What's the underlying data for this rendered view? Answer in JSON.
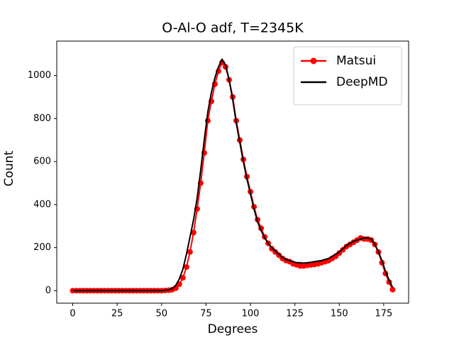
{
  "chart_data": {
    "type": "line",
    "title": "O-Al-O adf, T=2345K",
    "x_label": "Degrees",
    "y_label": "Count",
    "x": [
      0,
      2,
      4,
      6,
      8,
      10,
      12,
      14,
      16,
      18,
      20,
      22,
      24,
      26,
      28,
      30,
      32,
      34,
      36,
      38,
      40,
      42,
      44,
      46,
      48,
      50,
      52,
      54,
      56,
      58,
      60,
      62,
      64,
      66,
      68,
      70,
      72,
      74,
      76,
      78,
      80,
      82,
      84,
      86,
      88,
      90,
      92,
      94,
      96,
      98,
      100,
      102,
      104,
      106,
      108,
      110,
      112,
      114,
      116,
      118,
      120,
      122,
      124,
      126,
      128,
      130,
      132,
      134,
      136,
      138,
      140,
      142,
      144,
      146,
      148,
      150,
      152,
      154,
      156,
      158,
      160,
      162,
      164,
      166,
      168,
      170,
      172,
      174,
      176,
      178,
      180
    ],
    "series": [
      {
        "name": "Matsui",
        "color": "#ff0000",
        "marker": true,
        "values": [
          0,
          0,
          0,
          0,
          0,
          0,
          0,
          0,
          0,
          0,
          0,
          0,
          0,
          0,
          0,
          0,
          0,
          0,
          0,
          0,
          0,
          0,
          0,
          0,
          0,
          0,
          1,
          2,
          5,
          12,
          30,
          60,
          110,
          180,
          270,
          380,
          500,
          640,
          790,
          880,
          960,
          1020,
          1060,
          1040,
          980,
          900,
          790,
          700,
          610,
          530,
          460,
          390,
          330,
          290,
          250,
          220,
          195,
          180,
          165,
          150,
          140,
          135,
          125,
          120,
          115,
          115,
          118,
          120,
          122,
          125,
          130,
          135,
          140,
          150,
          160,
          175,
          190,
          205,
          215,
          225,
          235,
          245,
          240,
          240,
          235,
          215,
          180,
          130,
          80,
          40,
          5
        ]
      },
      {
        "name": "DeepMD",
        "color": "#000000",
        "marker": false,
        "values": [
          0,
          0,
          0,
          0,
          0,
          0,
          0,
          0,
          0,
          0,
          0,
          0,
          0,
          0,
          0,
          0,
          0,
          0,
          0,
          0,
          0,
          0,
          0,
          0,
          0,
          0,
          2,
          4,
          10,
          25,
          55,
          100,
          170,
          250,
          330,
          430,
          560,
          700,
          830,
          920,
          990,
          1040,
          1075,
          1050,
          980,
          890,
          780,
          690,
          600,
          520,
          450,
          380,
          320,
          280,
          245,
          220,
          200,
          185,
          170,
          155,
          145,
          140,
          135,
          130,
          130,
          128,
          130,
          132,
          135,
          138,
          140,
          145,
          150,
          160,
          170,
          180,
          195,
          210,
          220,
          230,
          235,
          240,
          245,
          245,
          240,
          215,
          180,
          140,
          90,
          50,
          15
        ]
      }
    ],
    "xlim": [
      -9,
      189
    ],
    "ylim": [
      -58,
      1160
    ],
    "xticks": [
      0,
      25,
      50,
      75,
      100,
      125,
      150,
      175
    ],
    "yticks": [
      0,
      200,
      400,
      600,
      800,
      1000
    ],
    "grid": false,
    "legend": "upper right"
  }
}
